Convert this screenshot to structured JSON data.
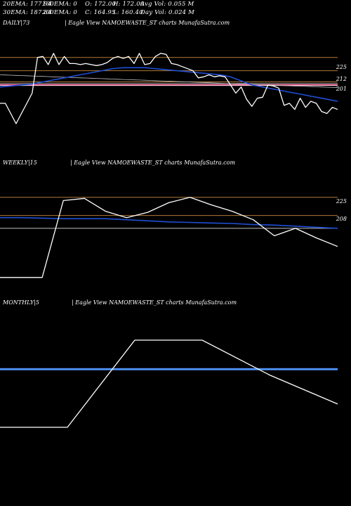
{
  "header": {
    "row1": [
      "20EMA: 177.94",
      "100EMA: 0",
      "O: 172.00",
      "H: 172.00",
      "Avg Vol: 0.055  M"
    ],
    "row2": [
      "30EMA: 187.84",
      "200EMA: 0",
      "C: 164.95",
      "L: 160.40",
      "Day Vol: 0.024  M"
    ]
  },
  "colors": {
    "background": "#000000",
    "price": "#ffffff",
    "ema_blue": "#1f4fd6",
    "resistance": "#b07a3a",
    "pink": "#ff6fa0",
    "grey": "#bfbfbf",
    "monthly_band": "#4d8ff0"
  },
  "chart_data": [
    {
      "type": "line",
      "panel_label": "DAILY|73",
      "watermark": "| Eagle   View  NAMOEWASTE_ST charts MunafaSutra.com",
      "y_ticks": [
        "225",
        "212",
        "201"
      ],
      "ylim": [
        140,
        240
      ],
      "series": [
        {
          "role": "price",
          "values": [
            180,
            180,
            170,
            160,
            170,
            180,
            190,
            225,
            226,
            218,
            229,
            218,
            226,
            219,
            219,
            218,
            219,
            218,
            217,
            218,
            220,
            224,
            226,
            224,
            226,
            219,
            229,
            218,
            219,
            226,
            229,
            228,
            219,
            218,
            216,
            214,
            212,
            205,
            206,
            208,
            206,
            207,
            206,
            198,
            190,
            196,
            184,
            177,
            185,
            186,
            198,
            197,
            195,
            178,
            180,
            174,
            185,
            176,
            182,
            180,
            172,
            170,
            176,
            174
          ]
        },
        {
          "role": "ema_blue",
          "values": [
            196,
            196.5,
            197,
            197.5,
            198,
            198.5,
            199,
            200,
            201,
            202,
            203,
            204,
            205,
            206,
            207,
            208,
            209,
            210,
            211,
            212,
            213,
            214,
            214.5,
            215,
            215,
            215,
            215,
            215,
            214.5,
            214,
            213.5,
            213,
            212.5,
            212,
            211.5,
            211,
            210.5,
            210,
            209.5,
            209,
            208.5,
            208,
            207,
            206,
            204,
            202,
            200,
            198,
            197,
            196,
            195,
            194,
            193,
            192,
            191,
            190,
            189,
            188,
            187,
            186,
            185,
            184,
            183,
            182
          ]
        },
        {
          "role": "grey_long",
          "values": [
            208,
            207.8,
            207.6,
            207.4,
            207.2,
            207,
            206.8,
            206.6,
            206.4,
            206.2,
            206,
            205.8,
            205.6,
            205.4,
            205.2,
            205,
            204.8,
            204.6,
            204.4,
            204.2,
            204,
            203.8,
            203.6,
            203.4,
            203.2,
            203,
            202.8,
            202.6,
            202.4,
            202.2,
            202,
            201.8,
            201.6,
            201.4,
            201.2,
            201,
            200.8,
            200.6,
            200.4,
            200.2,
            200,
            199.8,
            199.6,
            199.4,
            199.2,
            199,
            198.8,
            198.6,
            198.4,
            198.2,
            198,
            197.8,
            197.6,
            197.4,
            197.2,
            197,
            196.8,
            196.6,
            196.4,
            196.2,
            196,
            195.8,
            195.6,
            195.4
          ]
        }
      ],
      "levels": [
        {
          "label": "225",
          "value": 225,
          "color": "#b07a3a"
        },
        {
          "label": "212",
          "value": 212,
          "color": "#b07a3a"
        },
        {
          "label": "201",
          "value": 201,
          "color": "#b07a3a"
        }
      ],
      "pink_level": 198
    },
    {
      "type": "line",
      "panel_label": "WEEKLY|15",
      "watermark": "| Eagle   View  NAMOEWASTE_ST charts MunafaSutra.com",
      "y_ticks": [
        "225",
        "208"
      ],
      "ylim": [
        140,
        240
      ],
      "series": [
        {
          "role": "price",
          "values": [
            150,
            150,
            150,
            222,
            224,
            212,
            206,
            211,
            220,
            225,
            218,
            212,
            204,
            189,
            196,
            187,
            179
          ]
        },
        {
          "role": "ema_blue",
          "values": [
            206,
            206,
            205.5,
            205,
            205,
            205,
            204,
            203,
            202,
            201.5,
            201,
            200.5,
            199.5,
            199,
            198,
            197,
            196
          ]
        }
      ],
      "levels": [
        {
          "label": "225",
          "value": 225,
          "color": "#b07a3a"
        },
        {
          "label": "208",
          "value": 208,
          "color": "#b07a3a"
        }
      ],
      "grey_level": 196
    },
    {
      "type": "line",
      "panel_label": "MONTHLY|5",
      "watermark": "| Eagle   View  NAMOEWASTE_ST charts MunafaSutra.com",
      "series": [
        {
          "role": "price",
          "values": [
            150,
            150,
            225,
            225,
            195,
            170
          ]
        }
      ],
      "band_level": 200
    }
  ]
}
